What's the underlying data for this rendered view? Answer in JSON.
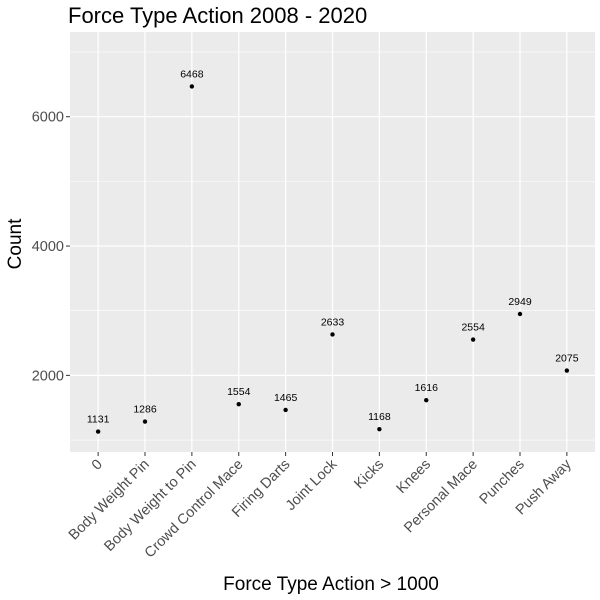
{
  "chart_data": {
    "type": "scatter",
    "title": "Force Type Action 2008 - 2020",
    "xlabel": "Force Type Action > 1000",
    "ylabel": "Count",
    "categories": [
      "0",
      "Body Weight Pin",
      "Body Weight to Pin",
      "Crowd Control Mace",
      "Firing Darts",
      "Joint Lock",
      "Kicks",
      "Knees",
      "Personal Mace",
      "Punches",
      "Push Away"
    ],
    "values": [
      1131,
      1286,
      6468,
      1554,
      1465,
      2633,
      1168,
      1616,
      2554,
      2949,
      2075
    ],
    "data_labels": [
      "1131",
      "1286",
      "6468",
      "1554",
      "1465",
      "2633",
      "1168",
      "1616",
      "2554",
      "2949",
      "2075"
    ],
    "y_ticks": [
      2000,
      4000,
      6000
    ],
    "y_tick_labels": [
      "2000",
      "4000",
      "6000"
    ],
    "ylim": [
      815,
      7310
    ],
    "grid": true,
    "legend": "none",
    "colors": {
      "panel": "#ebebeb",
      "grid": "#ffffff",
      "point": "#000000"
    }
  }
}
